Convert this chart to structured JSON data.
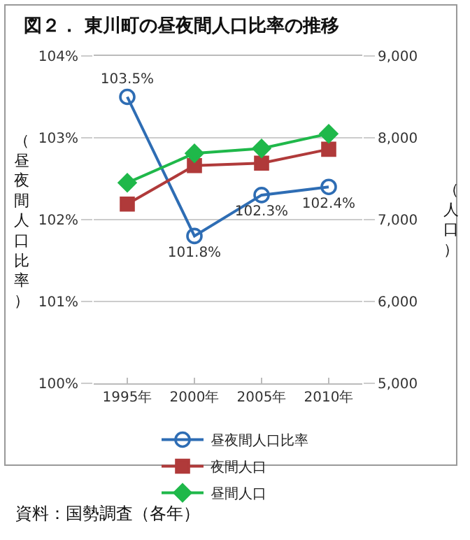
{
  "chart_data": {
    "type": "line",
    "title": "図２． 東川町の昼夜間人口比率の推移",
    "ylabel": "（昼夜間人口比率）",
    "y2label": "（人口）",
    "categories": [
      "1995年",
      "2000年",
      "2005年",
      "2010年"
    ],
    "series": [
      {
        "name": "昼夜間人口比率",
        "color": "#2e6db4",
        "values": [
          103.5,
          101.8,
          102.3,
          102.4
        ],
        "marker": "circle",
        "value_labels": [
          "103.5%",
          "101.8%",
          "102.3%",
          "102.4%"
        ]
      },
      {
        "name": "夜間人口",
        "color": "#b03a3a",
        "values": [
          7190,
          7660,
          7690,
          7860
        ],
        "marker": "square",
        "axis": "y2"
      },
      {
        "name": "昼間人口",
        "color": "#1fb84a",
        "values": [
          7450,
          7810,
          7870,
          8050
        ],
        "marker": "diamond",
        "axis": "y2"
      }
    ],
    "ylim": [
      100,
      104
    ],
    "yticks": [
      {
        "value": 100,
        "label": "100%"
      },
      {
        "value": 101,
        "label": "101%"
      },
      {
        "value": 102,
        "label": "102%"
      },
      {
        "value": 103,
        "label": "103%"
      },
      {
        "value": 104,
        "label": "104%"
      }
    ],
    "y2lim": [
      5000,
      9000
    ],
    "y2ticks": [
      {
        "value": 5000,
        "label": "5,000"
      },
      {
        "value": 6000,
        "label": "6,000"
      },
      {
        "value": 7000,
        "label": "7,000"
      },
      {
        "value": 8000,
        "label": "8,000"
      },
      {
        "value": 9000,
        "label": "9,000"
      }
    ],
    "grid": "y",
    "legend": "bottom",
    "line_style": "solid",
    "annotations": [
      "資料：国勢調査（各年）"
    ]
  }
}
